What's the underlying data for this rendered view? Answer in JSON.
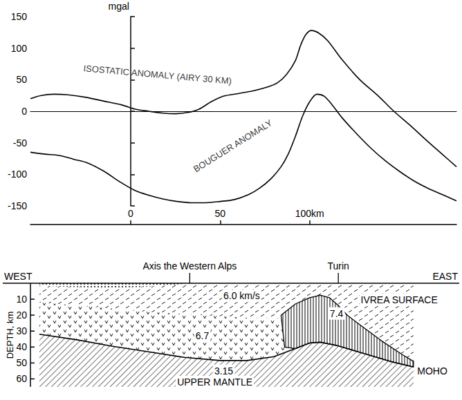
{
  "chart_data": {
    "type": "line",
    "ylabel": "mgal",
    "xlim": [
      -56,
      182
    ],
    "xticks": [
      0,
      50,
      {
        "value": 100,
        "label": "100km"
      }
    ],
    "ylim": [
      -150,
      150
    ],
    "yticks": [
      -150,
      -100,
      -50,
      0,
      50,
      100,
      150
    ],
    "grid": false,
    "series": [
      {
        "name": "ISOSTATIC ANOMALY (AIRY 30 KM)",
        "color": "#000000",
        "label_at": [
          15,
          58
        ],
        "x": [
          -56,
          -50,
          -43,
          -35,
          -25,
          -15,
          -5,
          3,
          10,
          18,
          25,
          32,
          38,
          45,
          52,
          60,
          68,
          76,
          82,
          87,
          92,
          95,
          98,
          101,
          105,
          110,
          118,
          128,
          138,
          147,
          156,
          166,
          174,
          182
        ],
        "values": [
          20,
          25,
          27,
          26,
          22,
          16,
          10,
          3,
          0,
          -3,
          -4,
          -2,
          3,
          15,
          24,
          28,
          32,
          38,
          45,
          58,
          80,
          105,
          122,
          128,
          124,
          112,
          82,
          50,
          25,
          0,
          -22,
          -48,
          -68,
          -88
        ]
      },
      {
        "name": "BOUGUER ANOMALY",
        "color": "#000000",
        "label_at": [
          57,
          -55
        ],
        "x": [
          -56,
          -48,
          -40,
          -32,
          -24,
          -15,
          -6,
          2,
          10,
          18,
          26,
          34,
          42,
          50,
          58,
          66,
          72,
          78,
          84,
          88,
          92,
          96,
          100,
          104,
          108,
          112,
          118,
          126,
          134,
          142,
          150,
          158,
          166,
          174,
          182
        ],
        "values": [
          -65,
          -68,
          -70,
          -76,
          -82,
          -95,
          -112,
          -125,
          -133,
          -139,
          -143,
          -145,
          -145,
          -143,
          -140,
          -132,
          -122,
          -108,
          -88,
          -68,
          -40,
          -8,
          15,
          27,
          24,
          12,
          -10,
          -35,
          -58,
          -78,
          -95,
          -110,
          -122,
          -132,
          -142
        ]
      }
    ]
  },
  "cross_section": {
    "ylabel": "DEPTH, km",
    "ylim": [
      0,
      65
    ],
    "yticks": [
      10,
      20,
      30,
      40,
      50,
      60
    ],
    "west": "WEST",
    "east": "EAST",
    "surface_marks": [
      {
        "label": "Axis the Western Alps",
        "x": 33
      },
      {
        "label": "Turin",
        "x": 116
      }
    ],
    "sediments": {
      "x": [
        -51,
        -35,
        -15,
        5,
        20,
        30
      ],
      "depth": [
        1.5,
        2.3,
        2.8,
        2.4,
        1.4,
        0.3
      ]
    },
    "lower_crust_top": {
      "x": [
        -51,
        -20,
        10,
        40,
        70,
        92
      ],
      "depth": [
        12,
        15,
        18,
        20,
        22,
        22
      ]
    },
    "moho": {
      "x": [
        -51,
        -30,
        -10,
        10,
        30,
        50,
        65,
        80,
        92,
        100,
        106,
        115,
        130,
        145,
        158
      ],
      "depth": [
        32,
        35.5,
        39.5,
        43,
        46.5,
        48.5,
        48.5,
        46,
        41,
        37.5,
        37,
        39,
        44,
        49,
        52.5
      ]
    },
    "ivrea_body": {
      "x": [
        84,
        92,
        100,
        106,
        111,
        116,
        121,
        128,
        140,
        152,
        158,
        158,
        145,
        130,
        115,
        106,
        100,
        92,
        86
      ],
      "depth": [
        20,
        13,
        9,
        7.5,
        9,
        14,
        20,
        26,
        36,
        45,
        49,
        52.5,
        49,
        44,
        39,
        37,
        37.5,
        41,
        40
      ]
    },
    "labels": [
      {
        "text": "6.0 km/s",
        "x": 62,
        "depth": 8
      },
      {
        "text": "6.7",
        "x": 40,
        "depth": 33
      },
      {
        "text": "7.4",
        "x": 115,
        "depth": 19
      },
      {
        "text": "3.15",
        "x": 52,
        "depth": 55
      },
      {
        "text": "IVREA SURFACE",
        "x": 150,
        "depth": 10.5
      },
      {
        "text": "MOHO",
        "x": 168.5,
        "depth": 55
      },
      {
        "text": "UPPER MANTLE",
        "x": 47,
        "depth": 62
      }
    ]
  }
}
